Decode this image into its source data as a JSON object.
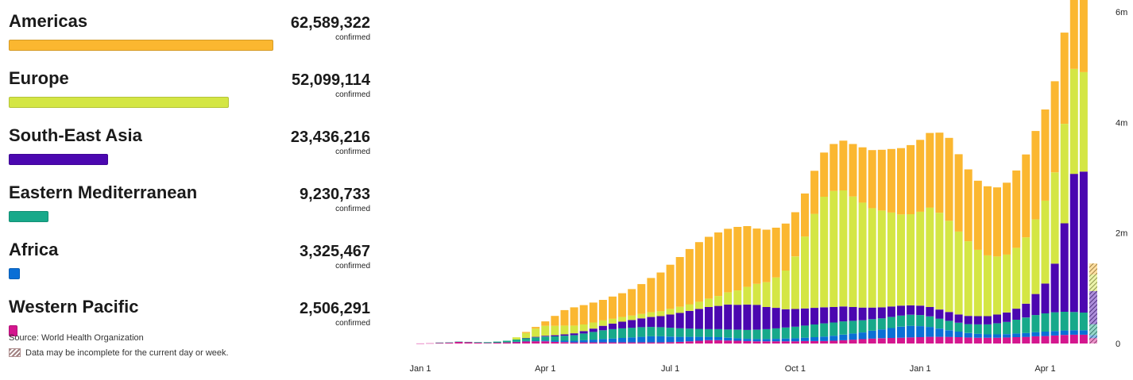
{
  "legend": {
    "source": "Source: World Health Organization",
    "note": "Data may be incomplete for the current day or week.",
    "regions": [
      {
        "name": "Americas",
        "count": "62,589,322",
        "confirmed": "confirmed",
        "color": "#fbb730"
      },
      {
        "name": "Europe",
        "count": "52,099,114",
        "confirmed": "confirmed",
        "color": "#d4e644"
      },
      {
        "name": "South-East Asia",
        "count": "23,436,216",
        "confirmed": "confirmed",
        "color": "#4b07b0"
      },
      {
        "name": "Eastern Mediterranean",
        "count": "9,230,733",
        "confirmed": "confirmed",
        "color": "#17a98a"
      },
      {
        "name": "Africa",
        "count": "3,325,467",
        "confirmed": "confirmed",
        "color": "#0a6fd6"
      },
      {
        "name": "Western Pacific",
        "count": "2,506,291",
        "confirmed": "confirmed",
        "color": "#d4168e"
      }
    ]
  },
  "chart_data": {
    "type": "bar",
    "stacked": true,
    "x_tick_labels": [
      "Jan 1",
      "Apr 1",
      "Jul 1",
      "Oct 1",
      "Jan 1",
      "Apr 1"
    ],
    "x_tick_weeks": [
      0,
      13,
      26,
      39,
      52,
      65
    ],
    "y_tick_labels": [
      "0",
      "2m",
      "4m",
      "6m"
    ],
    "y_tick_values": [
      0,
      2000000,
      4000000,
      6000000
    ],
    "ylim": [
      0,
      6000000
    ],
    "incomplete_last_bar": true,
    "series": [
      {
        "name": "Western Pacific",
        "color": "#d4168e",
        "values": [
          2000,
          4000,
          15000,
          15000,
          30000,
          25000,
          15000,
          10000,
          15000,
          20000,
          30000,
          40000,
          40000,
          40000,
          30000,
          25000,
          20000,
          20000,
          20000,
          20000,
          20000,
          20000,
          20000,
          20000,
          20000,
          20000,
          25000,
          30000,
          40000,
          50000,
          60000,
          60000,
          55000,
          50000,
          45000,
          40000,
          40000,
          40000,
          40000,
          40000,
          45000,
          45000,
          45000,
          50000,
          60000,
          70000,
          80000,
          90000,
          95000,
          100000,
          105000,
          110000,
          115000,
          120000,
          120000,
          120000,
          115000,
          110000,
          105000,
          105000,
          105000,
          110000,
          115000,
          120000,
          130000,
          135000,
          145000,
          155000,
          160000,
          160000,
          100000
        ]
      },
      {
        "name": "Africa",
        "color": "#0a6fd6",
        "values": [
          0,
          0,
          0,
          0,
          0,
          0,
          0,
          0,
          0,
          0,
          2000,
          5000,
          10000,
          15000,
          20000,
          25000,
          30000,
          40000,
          50000,
          60000,
          70000,
          80000,
          90000,
          100000,
          110000,
          110000,
          100000,
          90000,
          80000,
          70000,
          60000,
          55000,
          50000,
          45000,
          40000,
          40000,
          40000,
          45000,
          50000,
          55000,
          60000,
          70000,
          80000,
          90000,
          100000,
          110000,
          120000,
          140000,
          160000,
          180000,
          200000,
          210000,
          200000,
          180000,
          150000,
          120000,
          100000,
          80000,
          70000,
          60000,
          60000,
          60000,
          65000,
          70000,
          75000,
          80000,
          80000,
          80000,
          80000,
          80000,
          50000
        ]
      },
      {
        "name": "Eastern Mediterranean",
        "color": "#17a98a",
        "values": [
          0,
          0,
          2000,
          5000,
          5000,
          5000,
          10000,
          15000,
          20000,
          30000,
          40000,
          50000,
          60000,
          70000,
          80000,
          90000,
          100000,
          120000,
          140000,
          160000,
          170000,
          175000,
          175000,
          175000,
          170000,
          165000,
          160000,
          155000,
          150000,
          145000,
          140000,
          145000,
          150000,
          155000,
          160000,
          170000,
          180000,
          190000,
          200000,
          210000,
          220000,
          230000,
          240000,
          240000,
          240000,
          230000,
          220000,
          210000,
          200000,
          200000,
          200000,
          200000,
          200000,
          190000,
          180000,
          170000,
          160000,
          160000,
          170000,
          180000,
          200000,
          220000,
          250000,
          280000,
          310000,
          330000,
          340000,
          340000,
          330000,
          320000,
          200000
        ]
      },
      {
        "name": "South-East Asia",
        "color": "#4b07b0",
        "values": [
          0,
          0,
          0,
          0,
          0,
          0,
          0,
          0,
          0,
          0,
          0,
          5000,
          10000,
          15000,
          20000,
          25000,
          35000,
          45000,
          60000,
          80000,
          100000,
          120000,
          140000,
          160000,
          180000,
          200000,
          240000,
          280000,
          320000,
          360000,
          400000,
          420000,
          450000,
          450000,
          460000,
          450000,
          400000,
          370000,
          330000,
          320000,
          310000,
          300000,
          290000,
          280000,
          270000,
          250000,
          230000,
          210000,
          200000,
          190000,
          180000,
          170000,
          170000,
          170000,
          165000,
          160000,
          150000,
          150000,
          150000,
          150000,
          160000,
          170000,
          200000,
          250000,
          380000,
          540000,
          880000,
          1600000,
          2500000,
          2550000,
          600000
        ]
      },
      {
        "name": "Europe",
        "color": "#d4e644",
        "values": [
          0,
          0,
          0,
          0,
          0,
          0,
          0,
          0,
          0,
          0,
          40000,
          90000,
          150000,
          180000,
          170000,
          160000,
          140000,
          120000,
          110000,
          100000,
          90000,
          85000,
          80000,
          80000,
          85000,
          90000,
          100000,
          110000,
          120000,
          130000,
          150000,
          180000,
          220000,
          260000,
          320000,
          380000,
          450000,
          550000,
          700000,
          950000,
          1300000,
          1700000,
          2000000,
          2100000,
          2100000,
          2000000,
          1900000,
          1800000,
          1750000,
          1700000,
          1650000,
          1650000,
          1700000,
          1800000,
          1750000,
          1650000,
          1500000,
          1350000,
          1200000,
          1100000,
          1050000,
          1050000,
          1100000,
          1200000,
          1350000,
          1500000,
          1650000,
          1800000,
          1900000,
          1800000,
          300000
        ]
      },
      {
        "name": "Americas",
        "color": "#fbb730",
        "values": [
          0,
          0,
          0,
          0,
          0,
          0,
          0,
          0,
          0,
          0,
          0,
          20000,
          30000,
          80000,
          180000,
          280000,
          330000,
          350000,
          360000,
          370000,
          400000,
          430000,
          480000,
          540000,
          620000,
          700000,
          800000,
          900000,
          1000000,
          1080000,
          1120000,
          1150000,
          1150000,
          1150000,
          1100000,
          1000000,
          950000,
          900000,
          850000,
          800000,
          780000,
          780000,
          800000,
          850000,
          900000,
          950000,
          1000000,
          1050000,
          1100000,
          1150000,
          1200000,
          1250000,
          1300000,
          1350000,
          1450000,
          1500000,
          1400000,
          1300000,
          1250000,
          1250000,
          1250000,
          1300000,
          1400000,
          1500000,
          1600000,
          1650000,
          1650000,
          1650000,
          1500000,
          1500000,
          200000
        ]
      }
    ]
  }
}
